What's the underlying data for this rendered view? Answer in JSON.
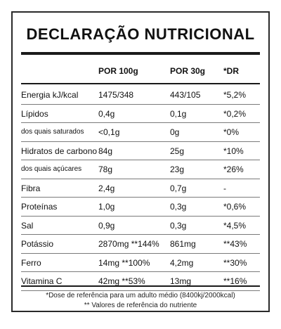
{
  "title": "DECLARAÇÃO NUTRICIONAL",
  "columns": [
    "",
    "POR 100g",
    "POR 30g",
    "*DR"
  ],
  "rows": [
    {
      "name": "Energia kJ/kcal",
      "per100": "1475/348",
      "per30": "443/105",
      "dr": "*5,2%",
      "sub": false
    },
    {
      "name": "Lípidos",
      "per100": "0,4g",
      "per30": "0,1g",
      "dr": "*0,2%",
      "sub": false
    },
    {
      "name": "dos quais saturados",
      "per100": "<0,1g",
      "per30": "0g",
      "dr": "*0%",
      "sub": true
    },
    {
      "name": "Hidratos de carbono",
      "per100": "84g",
      "per30": "25g",
      "dr": "*10%",
      "sub": false
    },
    {
      "name": "dos quais açúcares",
      "per100": "78g",
      "per30": "23g",
      "dr": "*26%",
      "sub": true
    },
    {
      "name": "Fibra",
      "per100": "2,4g",
      "per30": "0,7g",
      "dr": "-",
      "sub": false
    },
    {
      "name": "Proteínas",
      "per100": "1,0g",
      "per30": "0,3g",
      "dr": "*0,6%",
      "sub": false
    },
    {
      "name": "Sal",
      "per100": "0,9g",
      "per30": "0,3g",
      "dr": "*4,5%",
      "sub": false
    },
    {
      "name": "Potássio",
      "per100": "2870mg **144%",
      "per30": "861mg",
      "dr": "**43%",
      "sub": false
    },
    {
      "name": "Ferro",
      "per100": "14mg **100%",
      "per30": "4,2mg",
      "dr": "**30%",
      "sub": false
    },
    {
      "name": "Vitamina C",
      "per100": "42mg **53%",
      "per30": "13mg",
      "dr": "**16%",
      "sub": false
    }
  ],
  "footnotes": [
    "*Dose de referência para um adulto médio (8400kj/2000kcal)",
    "** Valores de referência do nutriente"
  ]
}
